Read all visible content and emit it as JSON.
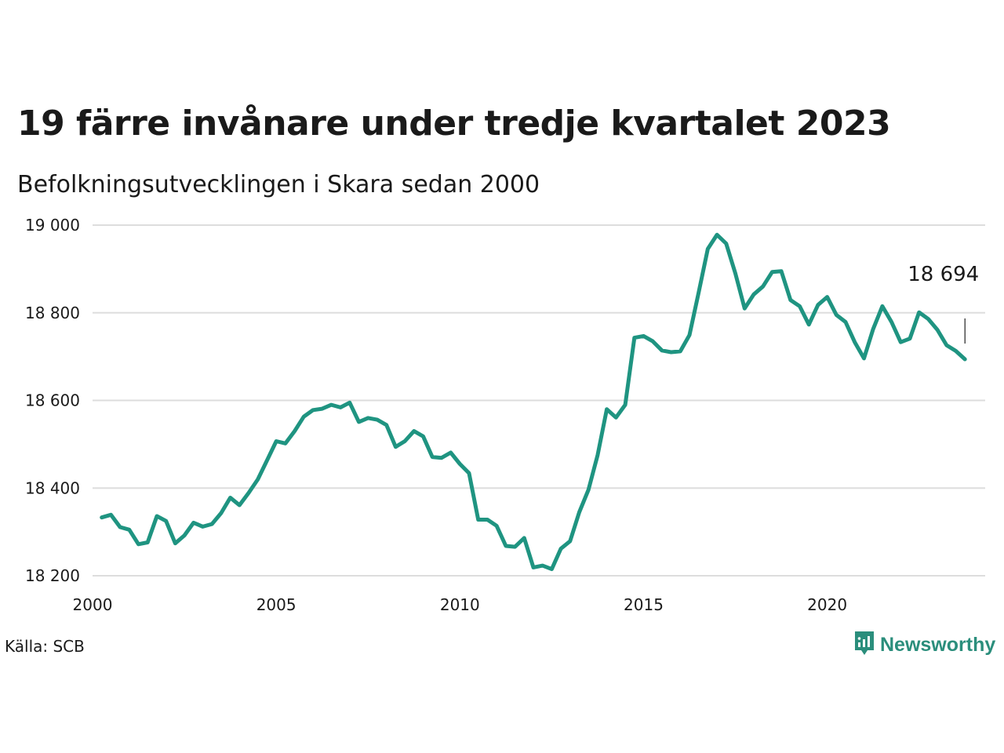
{
  "title": "19 färre invånare under tredje kvartalet 2023",
  "subtitle": "Befolkningsutvecklingen i Skara sedan 2000",
  "source": "Källa: SCB",
  "brand": {
    "name": "Newsworthy",
    "icon": "newsworthy-logo-icon",
    "color": "#2b8e7c"
  },
  "colors": {
    "line": "#1f9481",
    "grid": "#dddddd"
  },
  "chart_data": {
    "type": "line",
    "title": "19 färre invånare under tredje kvartalet 2023",
    "subtitle": "Befolkningsutvecklingen i Skara sedan 2000",
    "xlabel": "",
    "ylabel": "",
    "ylim": [
      18200,
      19000
    ],
    "xlim": [
      2000,
      2024.3
    ],
    "yticks": [
      18200,
      18400,
      18600,
      18800,
      19000
    ],
    "ytick_labels": [
      "18 200",
      "18 400",
      "18 600",
      "18 800",
      "19 000"
    ],
    "xticks": [
      2000,
      2005,
      2010,
      2015,
      2020
    ],
    "xtick_labels": [
      "2000",
      "2005",
      "2010",
      "2015",
      "2020"
    ],
    "grid": true,
    "annotation": {
      "label": "18 694"
    },
    "x": [
      2000.25,
      2000.5,
      2000.75,
      2001.0,
      2001.25,
      2001.5,
      2001.75,
      2002.0,
      2002.25,
      2002.5,
      2002.75,
      2003.0,
      2003.25,
      2003.5,
      2003.75,
      2004.0,
      2004.25,
      2004.5,
      2004.75,
      2005.0,
      2005.25,
      2005.5,
      2005.75,
      2006.0,
      2006.25,
      2006.5,
      2006.75,
      2007.0,
      2007.25,
      2007.5,
      2007.75,
      2008.0,
      2008.25,
      2008.5,
      2008.75,
      2009.0,
      2009.25,
      2009.5,
      2009.75,
      2010.0,
      2010.25,
      2010.5,
      2010.75,
      2011.0,
      2011.25,
      2011.5,
      2011.75,
      2012.0,
      2012.25,
      2012.5,
      2012.75,
      2013.0,
      2013.25,
      2013.5,
      2013.75,
      2014.0,
      2014.25,
      2014.5,
      2014.75,
      2015.0,
      2015.25,
      2015.5,
      2015.75,
      2016.0,
      2016.25,
      2016.5,
      2016.75,
      2017.0,
      2017.25,
      2017.5,
      2017.75,
      2018.0,
      2018.25,
      2018.5,
      2018.75,
      2019.0,
      2019.25,
      2019.5,
      2019.75,
      2020.0,
      2020.25,
      2020.5,
      2020.75,
      2021.0,
      2021.25,
      2021.5,
      2021.75,
      2022.0,
      2022.25,
      2022.5,
      2022.75,
      2023.0,
      2023.25,
      2023.5,
      2023.75
    ],
    "series": [
      {
        "values": [
          18333,
          18339,
          18311,
          18305,
          18272,
          18276,
          18336,
          18325,
          18274,
          18292,
          18321,
          18312,
          18318,
          18343,
          18378,
          18361,
          18389,
          18420,
          18463,
          18507,
          18502,
          18530,
          18563,
          18578,
          18581,
          18590,
          18584,
          18595,
          18551,
          18560,
          18556,
          18544,
          18494,
          18507,
          18530,
          18518,
          18471,
          18469,
          18481,
          18455,
          18434,
          18328,
          18328,
          18314,
          18268,
          18266,
          18286,
          18219,
          18223,
          18215,
          18262,
          18279,
          18345,
          18396,
          18475,
          18580,
          18561,
          18590,
          18743,
          18747,
          18735,
          18714,
          18710,
          18712,
          18749,
          18846,
          18946,
          18978,
          18958,
          18890,
          18810,
          18842,
          18860,
          18893,
          18895,
          18829,
          18815,
          18773,
          18818,
          18836,
          18795,
          18779,
          18733,
          18696,
          18763,
          18815,
          18779,
          18733,
          18741,
          18801,
          18786,
          18761,
          18726,
          18713,
          18694
        ]
      }
    ]
  }
}
